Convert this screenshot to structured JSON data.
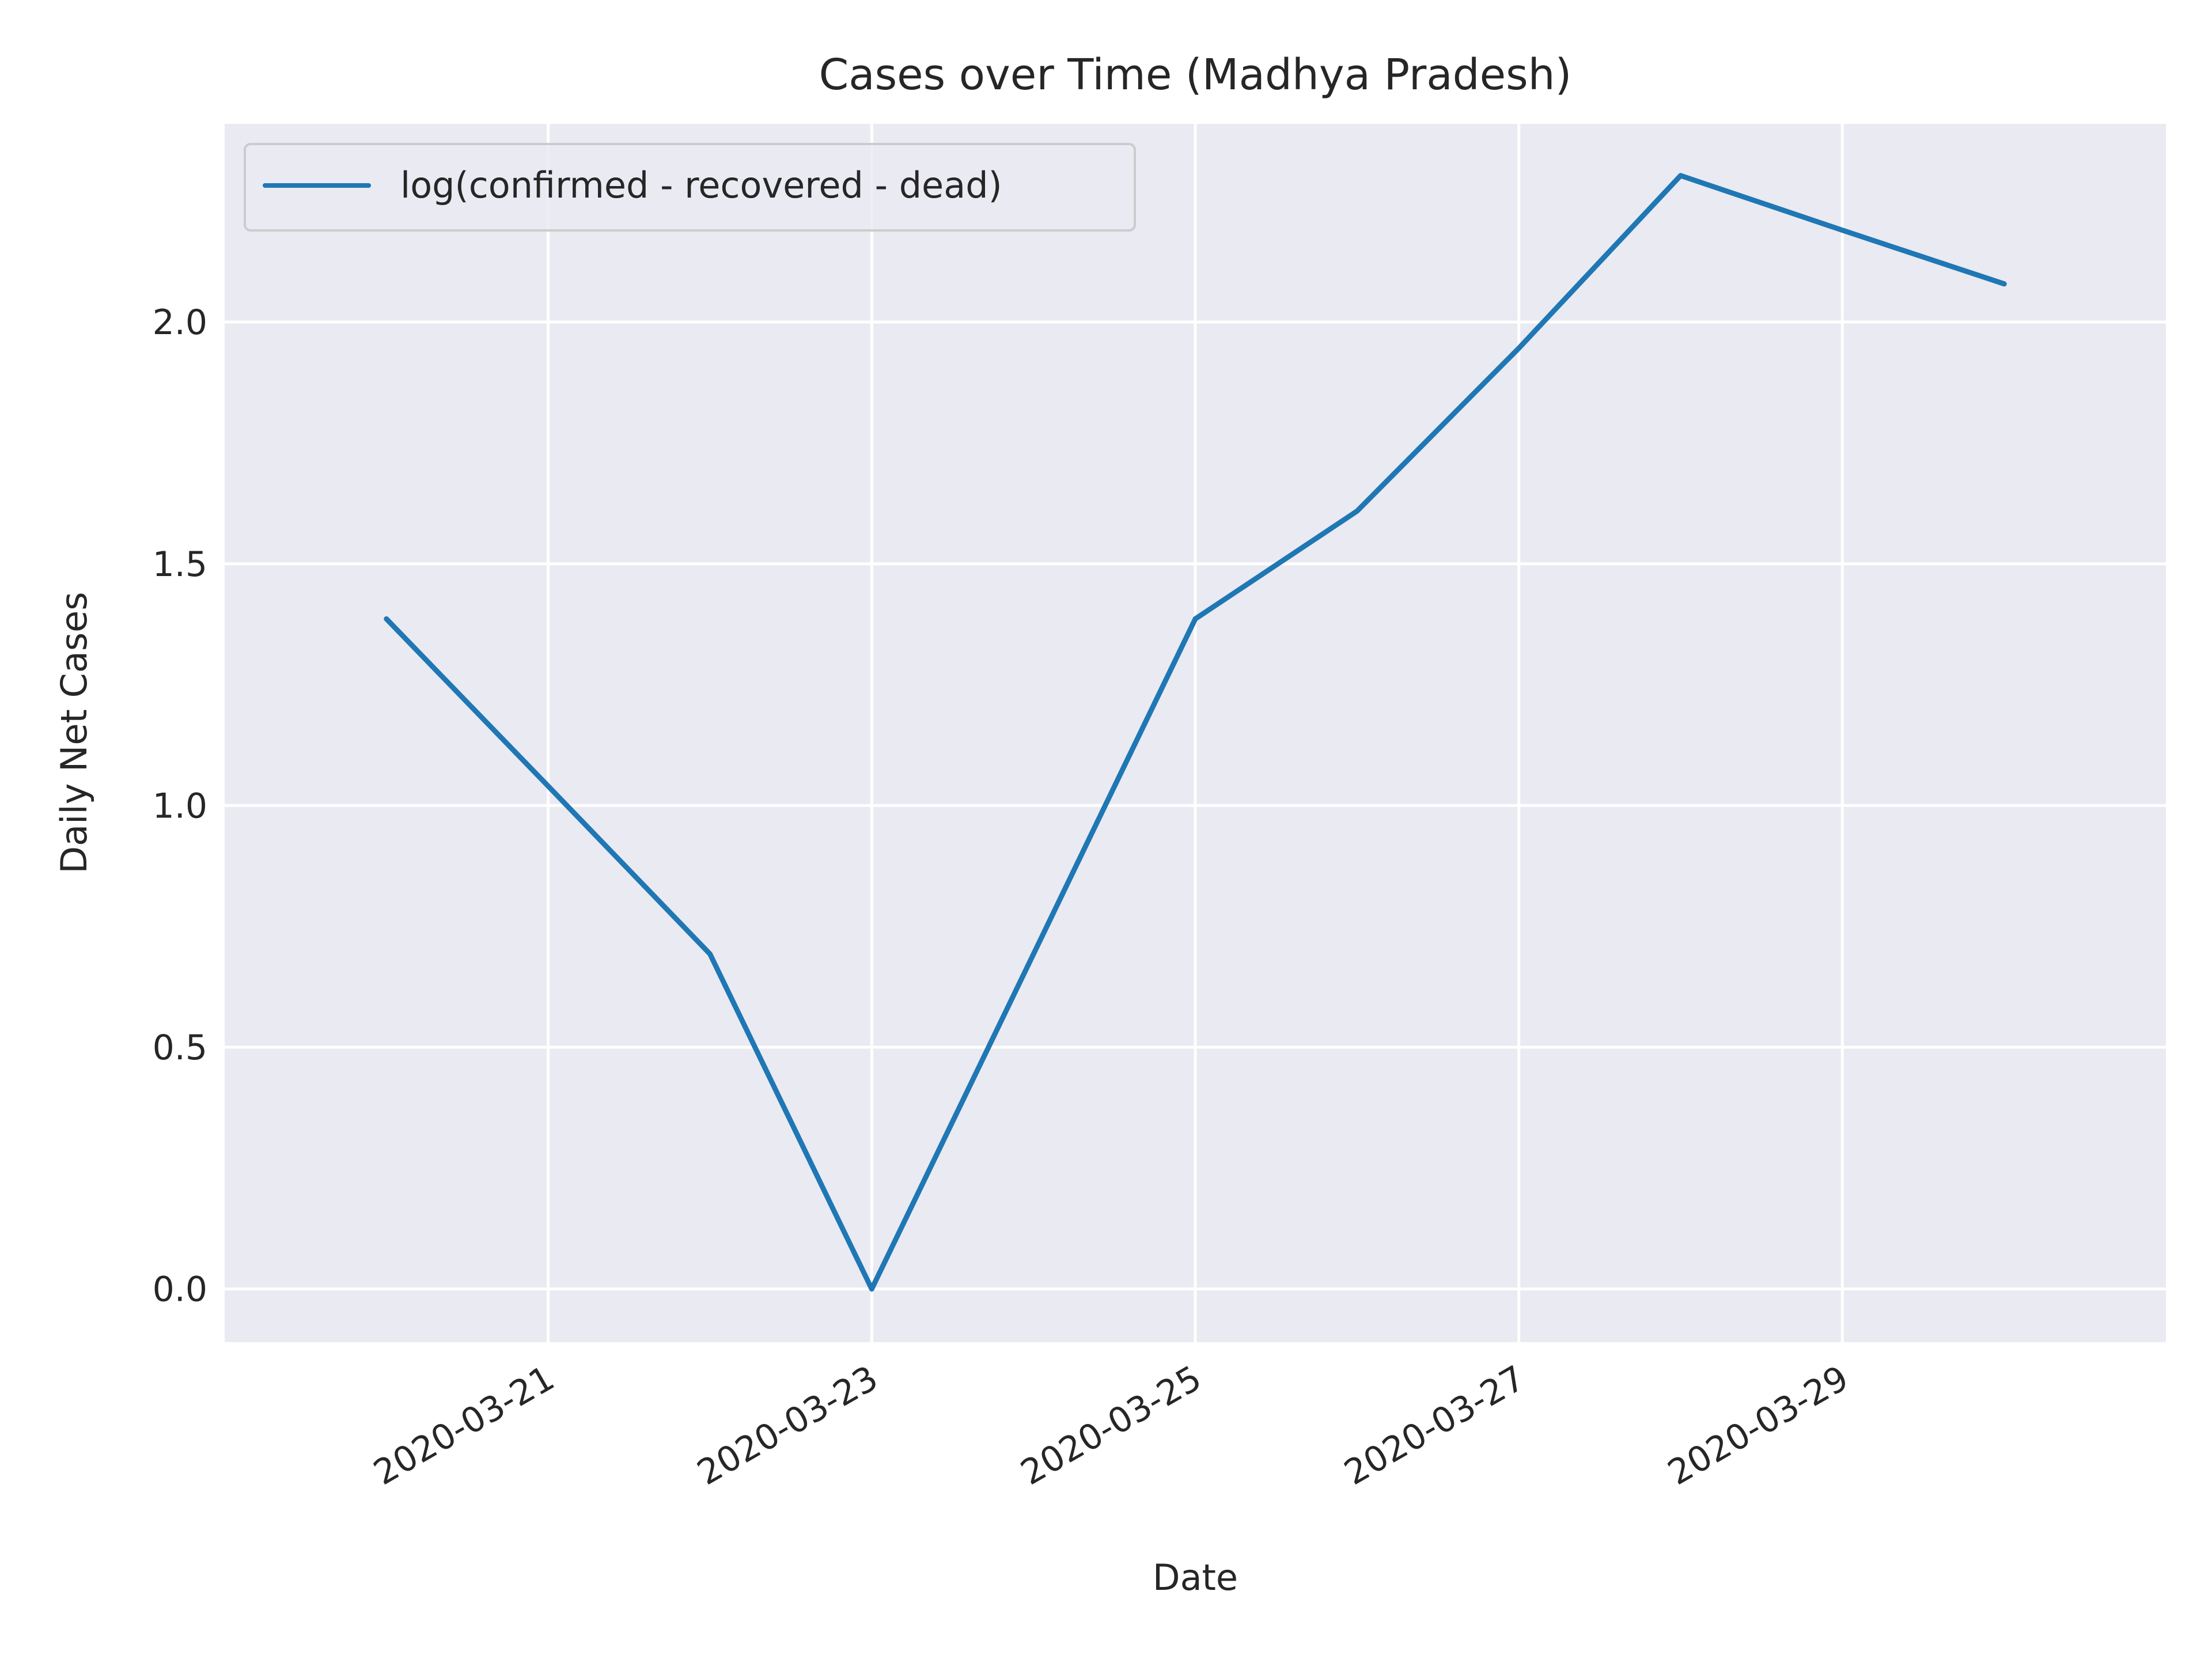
{
  "chart_data": {
    "type": "line",
    "title": "Cases over Time (Madhya Pradesh)",
    "xlabel": "Date",
    "ylabel": "Daily Net Cases",
    "x": [
      "2020-03-20",
      "2020-03-21",
      "2020-03-22",
      "2020-03-23",
      "2020-03-24",
      "2020-03-25",
      "2020-03-26",
      "2020-03-27",
      "2020-03-28",
      "2020-03-29",
      "2020-03-30"
    ],
    "series": [
      {
        "name": "log(confirmed - recovered - dead)",
        "color": "#1f77b4",
        "values": [
          1.386,
          1.04,
          0.693,
          0.0,
          0.693,
          1.386,
          1.609,
          1.946,
          2.303,
          2.19,
          2.079
        ]
      }
    ],
    "xticks": [
      "2020-03-21",
      "2020-03-23",
      "2020-03-25",
      "2020-03-27",
      "2020-03-29"
    ],
    "yticks": [
      "0.0",
      "0.5",
      "1.0",
      "1.5",
      "2.0"
    ],
    "xlim": [
      "2020-03-19",
      "2020-03-31"
    ],
    "ylim": [
      -0.11,
      2.41
    ],
    "grid": true,
    "legend_position": "top-left",
    "background_color": "#eaeaf2",
    "grid_color": "#ffffff"
  }
}
